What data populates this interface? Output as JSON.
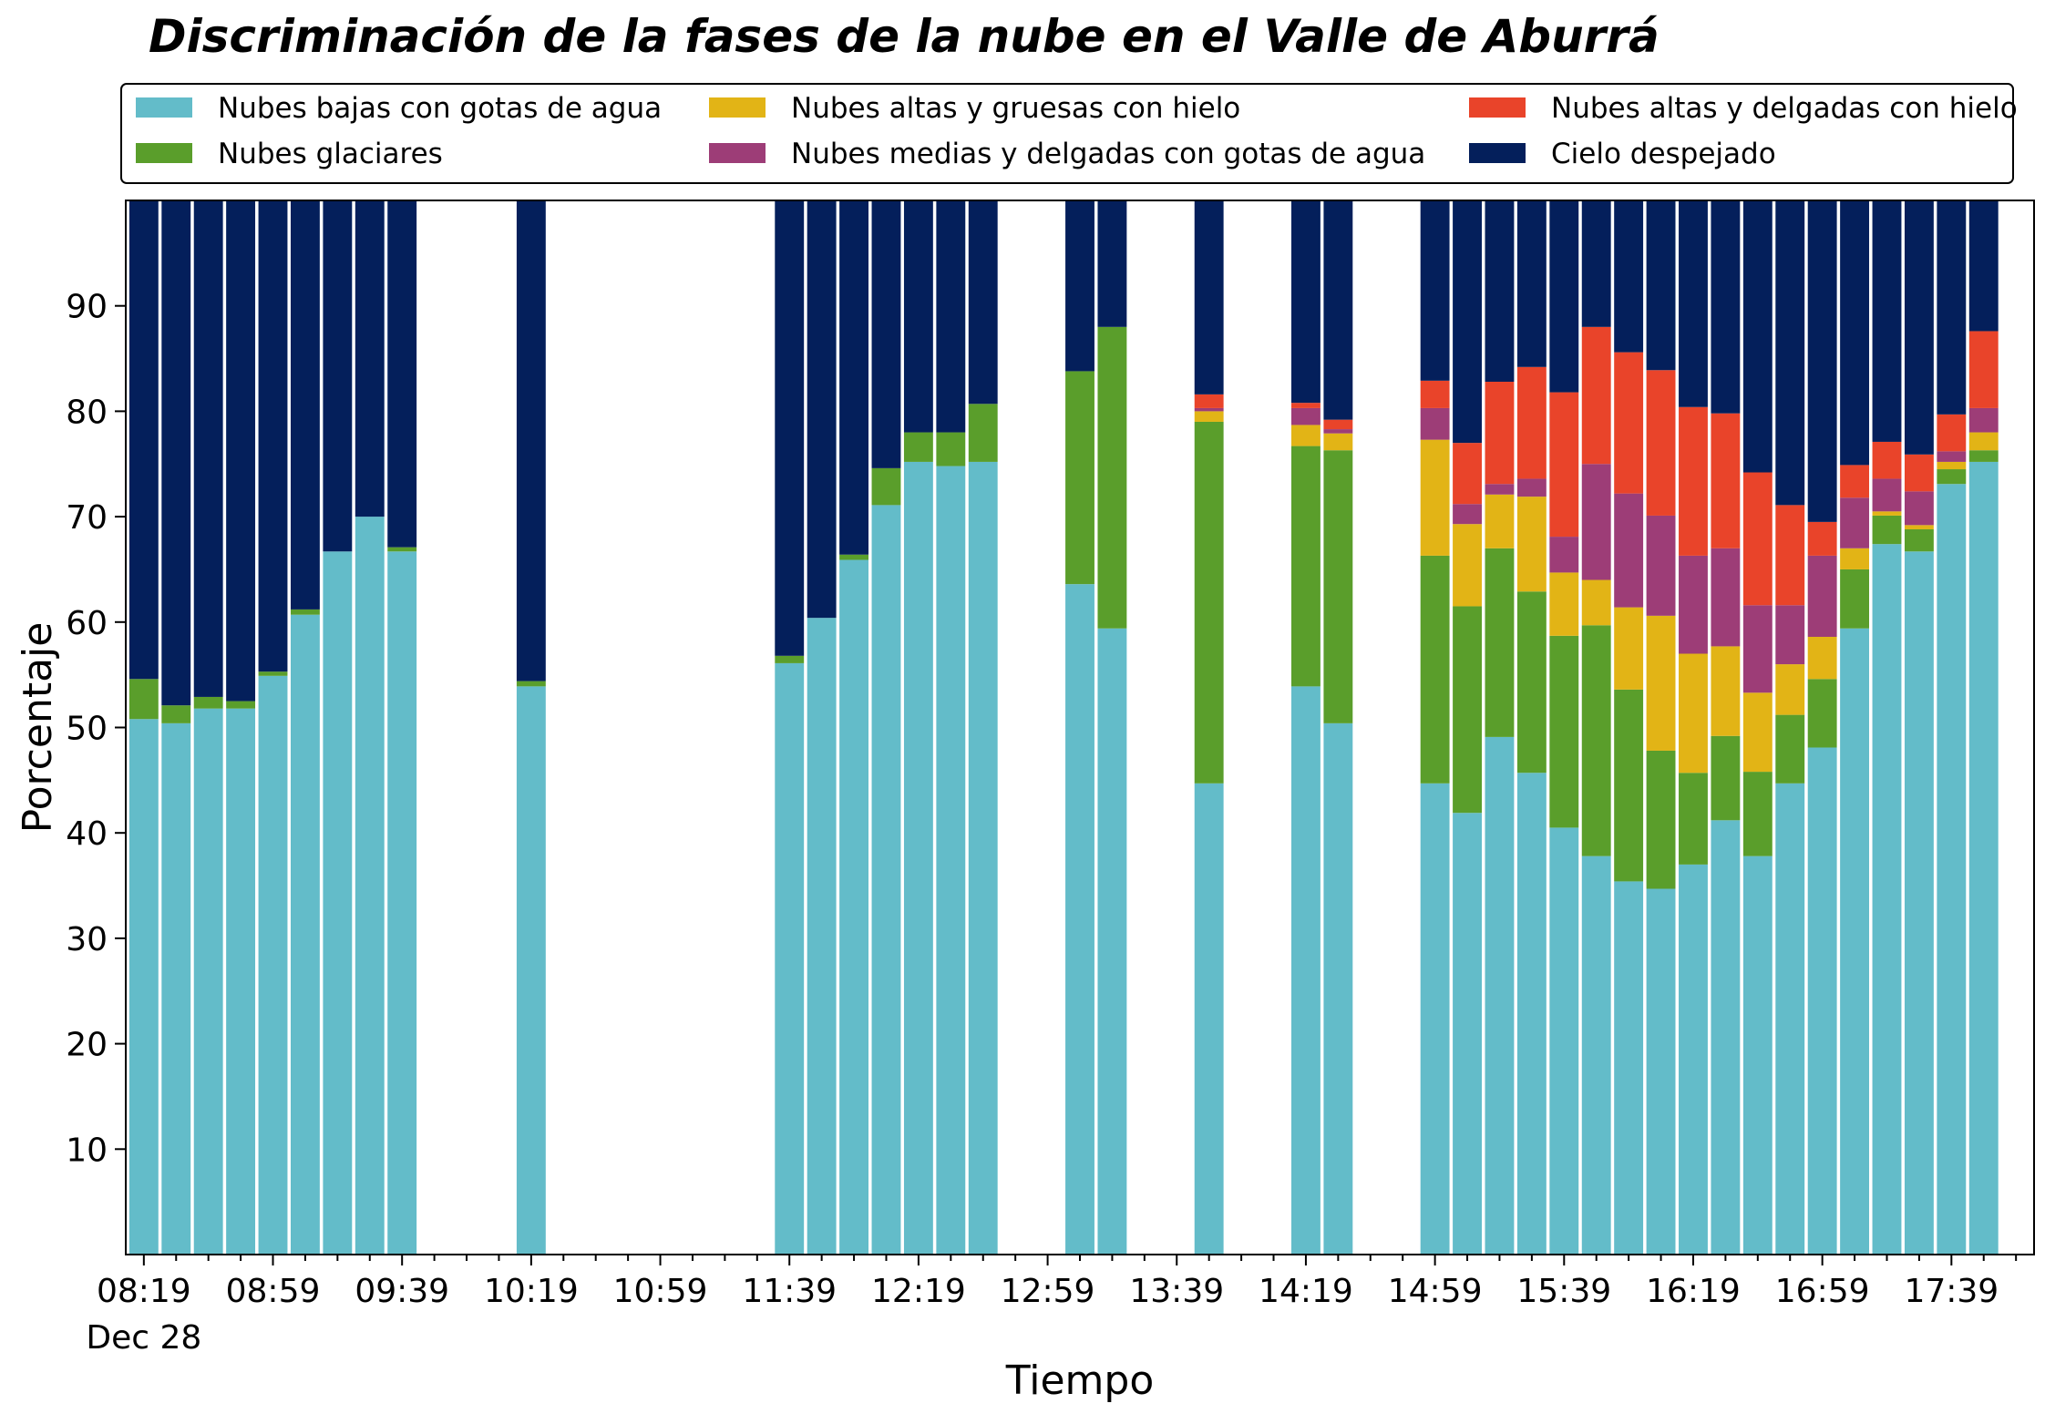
{
  "chart_data": {
    "type": "bar",
    "stacked": true,
    "title": "Discriminación de la fases de la nube en el Valle de Aburrá",
    "xlabel": "Tiempo",
    "ylabel": "Porcentaje",
    "ylim": [
      0,
      100
    ],
    "yticks": [
      10,
      20,
      30,
      40,
      50,
      60,
      70,
      80,
      90
    ],
    "x_tick_labels": [
      "08:19",
      "08:59",
      "09:39",
      "10:19",
      "10:59",
      "11:39",
      "12:19",
      "12:59",
      "13:39",
      "14:19",
      "14:59",
      "15:39",
      "16:19",
      "16:59",
      "17:39"
    ],
    "x_date_label": "Dec 28",
    "legend_position": "top",
    "grid": false,
    "x": [
      "08:19",
      "08:29",
      "08:39",
      "08:49",
      "08:59",
      "09:09",
      "09:19",
      "09:29",
      "09:39",
      "09:49",
      "09:59",
      "10:09",
      "10:19",
      "10:29",
      "10:39",
      "10:49",
      "10:59",
      "11:09",
      "11:19",
      "11:29",
      "11:39",
      "11:49",
      "11:59",
      "12:09",
      "12:19",
      "12:29",
      "12:39",
      "12:49",
      "12:59",
      "13:09",
      "13:19",
      "13:29",
      "13:39",
      "13:49",
      "13:59",
      "14:09",
      "14:19",
      "14:29",
      "14:39",
      "14:49",
      "14:59",
      "15:09",
      "15:19",
      "15:29",
      "15:39",
      "15:49",
      "15:59",
      "16:09",
      "16:19",
      "16:29",
      "16:39",
      "16:49",
      "16:59",
      "17:09",
      "17:19",
      "17:29",
      "17:39",
      "17:49",
      "17:59"
    ],
    "series": [
      {
        "name": "Nubes bajas con gotas de agua",
        "color": "#63bcc9",
        "values": [
          50.8,
          50.4,
          51.8,
          51.8,
          54.9,
          60.7,
          66.7,
          70,
          66.7,
          null,
          null,
          null,
          53.9,
          null,
          null,
          null,
          null,
          null,
          null,
          null,
          56.1,
          60.4,
          65.9,
          71.1,
          75.2,
          74.8,
          75.2,
          null,
          null,
          63.6,
          59.4,
          null,
          null,
          44.7,
          null,
          null,
          53.9,
          50.4,
          null,
          null,
          44.7,
          41.9,
          49.1,
          45.7,
          40.5,
          37.8,
          35.4,
          34.7,
          37,
          41.2,
          37.8,
          44.7,
          48.1,
          59.4,
          67.4,
          66.7,
          73.1,
          75.2,
          null
        ]
      },
      {
        "name": "Nubes glaciares",
        "color": "#5a9e2b",
        "values": [
          3.8,
          1.7,
          1.1,
          0.7,
          0.4,
          0.5,
          0,
          0,
          0.4,
          null,
          null,
          null,
          0.5,
          null,
          null,
          null,
          null,
          null,
          null,
          null,
          0.7,
          0,
          0.5,
          3.5,
          2.8,
          3.2,
          5.5,
          null,
          null,
          20.2,
          28.6,
          null,
          null,
          34.3,
          null,
          null,
          22.8,
          25.9,
          null,
          null,
          21.6,
          19.6,
          17.9,
          17.2,
          18.2,
          21.9,
          18.2,
          13.1,
          8.7,
          8,
          8,
          6.5,
          6.5,
          5.6,
          2.7,
          2.1,
          1.4,
          1.1,
          null
        ]
      },
      {
        "name": "Nubes altas y gruesas con hielo",
        "color": "#e2b416",
        "values": [
          0,
          0,
          0,
          0,
          0,
          0,
          0,
          0,
          0,
          null,
          null,
          null,
          0,
          null,
          null,
          null,
          null,
          null,
          null,
          null,
          0,
          0,
          0,
          0,
          0,
          0,
          0,
          null,
          null,
          0,
          0,
          null,
          null,
          1,
          null,
          null,
          2,
          1.6,
          null,
          null,
          11,
          7.8,
          5.1,
          9,
          6,
          4.3,
          7.8,
          12.8,
          11.3,
          8.5,
          7.5,
          4.8,
          4,
          2,
          0.4,
          0.4,
          0.7,
          1.7,
          null
        ]
      },
      {
        "name": "Nubes medias y delgadas con gotas de agua",
        "color": "#9d3d77",
        "values": [
          0,
          0,
          0,
          0,
          0,
          0,
          0,
          0,
          0,
          null,
          null,
          null,
          0,
          null,
          null,
          null,
          null,
          null,
          null,
          null,
          0,
          0,
          0,
          0,
          0,
          0,
          0,
          null,
          null,
          0,
          0,
          null,
          null,
          0.3,
          null,
          null,
          1.6,
          0.4,
          null,
          null,
          3,
          1.9,
          1,
          1.7,
          3.4,
          11,
          10.8,
          9.5,
          9.3,
          9.3,
          8.3,
          5.6,
          7.7,
          4.8,
          3.1,
          3.2,
          1,
          2.3,
          null
        ]
      },
      {
        "name": "Nubes altas y delgadas con hielo",
        "color": "#e9442a",
        "values": [
          0,
          0,
          0,
          0,
          0,
          0,
          0,
          0,
          0,
          null,
          null,
          null,
          0,
          null,
          null,
          null,
          null,
          null,
          null,
          null,
          0,
          0,
          0,
          0,
          0,
          0,
          0,
          null,
          null,
          0,
          0,
          null,
          null,
          1.3,
          null,
          null,
          0.5,
          0.9,
          null,
          null,
          2.6,
          5.8,
          9.7,
          10.6,
          13.7,
          13,
          13.4,
          13.8,
          14.1,
          12.8,
          12.6,
          9.5,
          3.2,
          3.1,
          3.5,
          3.5,
          3.5,
          7.3,
          null
        ]
      },
      {
        "name": "Cielo despejado",
        "color": "#041f5b",
        "values": [
          45.4,
          47.9,
          47.1,
          47.5,
          44.7,
          38.8,
          33.3,
          30,
          32.9,
          null,
          null,
          null,
          45.6,
          null,
          null,
          null,
          null,
          null,
          null,
          null,
          43.2,
          39.6,
          33.6,
          25.4,
          22,
          22,
          19.3,
          null,
          null,
          16.2,
          12,
          null,
          null,
          18.4,
          null,
          null,
          19.2,
          20.8,
          null,
          null,
          17.1,
          23,
          17.2,
          15.8,
          18.2,
          12,
          14.4,
          16.1,
          19.6,
          20.2,
          25.8,
          28.9,
          30.5,
          25.1,
          23,
          24.1,
          20.3,
          12.4,
          null
        ]
      }
    ]
  }
}
